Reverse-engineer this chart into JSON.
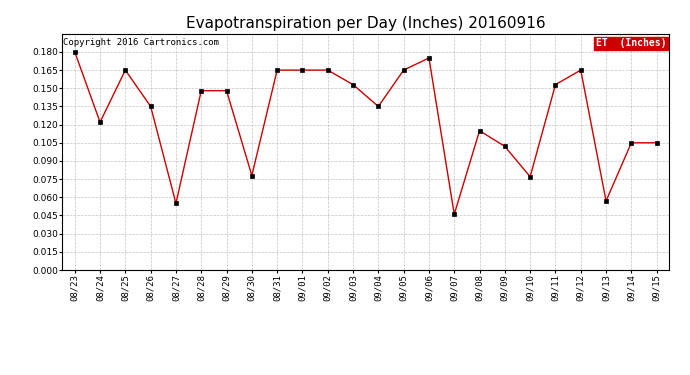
{
  "title": "Evapotranspiration per Day (Inches) 20160916",
  "copyright": "Copyright 2016 Cartronics.com",
  "legend_label": "ET  (Inches)",
  "legend_bg": "#cc0000",
  "legend_text_color": "#ffffff",
  "x_labels": [
    "08/23",
    "08/24",
    "08/25",
    "08/26",
    "08/27",
    "08/28",
    "08/29",
    "08/30",
    "08/31",
    "09/01",
    "09/02",
    "09/03",
    "09/04",
    "09/05",
    "09/06",
    "09/07",
    "09/08",
    "09/09",
    "09/10",
    "09/11",
    "09/12",
    "09/13",
    "09/14",
    "09/15"
  ],
  "y_values": [
    0.18,
    0.122,
    0.165,
    0.135,
    0.055,
    0.148,
    0.148,
    0.078,
    0.165,
    0.165,
    0.165,
    0.153,
    0.135,
    0.165,
    0.175,
    0.046,
    0.115,
    0.102,
    0.077,
    0.153,
    0.165,
    0.057,
    0.105,
    0.105
  ],
  "ylim_min": 0.0,
  "ylim_max": 0.195,
  "yticks": [
    0.0,
    0.015,
    0.03,
    0.045,
    0.06,
    0.075,
    0.09,
    0.105,
    0.12,
    0.135,
    0.15,
    0.165,
    0.18
  ],
  "line_color": "#cc0000",
  "marker_color": "#000000",
  "grid_color": "#aaaaaa",
  "bg_color": "#ffffff",
  "title_fontsize": 11,
  "copyright_fontsize": 6.5,
  "tick_fontsize": 6.5,
  "legend_fontsize": 7
}
